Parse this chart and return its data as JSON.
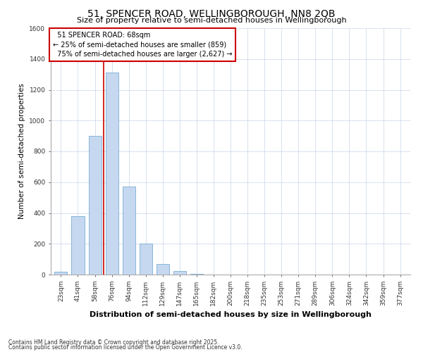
{
  "title": "51, SPENCER ROAD, WELLINGBOROUGH, NN8 2QB",
  "subtitle": "Size of property relative to semi-detached houses in Wellingborough",
  "xlabel": "Distribution of semi-detached houses by size in Wellingborough",
  "ylabel": "Number of semi-detached properties",
  "categories": [
    "23sqm",
    "41sqm",
    "58sqm",
    "76sqm",
    "94sqm",
    "112sqm",
    "129sqm",
    "147sqm",
    "165sqm",
    "182sqm",
    "200sqm",
    "218sqm",
    "235sqm",
    "253sqm",
    "271sqm",
    "289sqm",
    "306sqm",
    "324sqm",
    "342sqm",
    "359sqm",
    "377sqm"
  ],
  "values": [
    18,
    380,
    900,
    1310,
    570,
    200,
    70,
    25,
    5,
    0,
    0,
    0,
    0,
    0,
    0,
    0,
    0,
    0,
    0,
    0,
    0
  ],
  "bar_color": "#c5d8f0",
  "bar_edge_color": "#7aadd4",
  "property_label": "51 SPENCER ROAD: 68sqm",
  "smaller_pct": 25,
  "smaller_count": 859,
  "larger_pct": 75,
  "larger_count": 2627,
  "vline_x_index": 2.5,
  "ylim": [
    0,
    1600
  ],
  "yticks": [
    0,
    200,
    400,
    600,
    800,
    1000,
    1200,
    1400,
    1600
  ],
  "annotation_box_color": "#ffffff",
  "annotation_box_edge": "#cc0000",
  "vline_color": "#cc0000",
  "footer1": "Contains HM Land Registry data © Crown copyright and database right 2025.",
  "footer2": "Contains public sector information licensed under the Open Government Licence v3.0.",
  "background_color": "#ffffff",
  "grid_color": "#c8d4e8",
  "title_fontsize": 10,
  "subtitle_fontsize": 8,
  "ylabel_fontsize": 7.5,
  "xlabel_fontsize": 8,
  "tick_fontsize": 6.5,
  "annot_fontsize": 7,
  "footer_fontsize": 5.5
}
